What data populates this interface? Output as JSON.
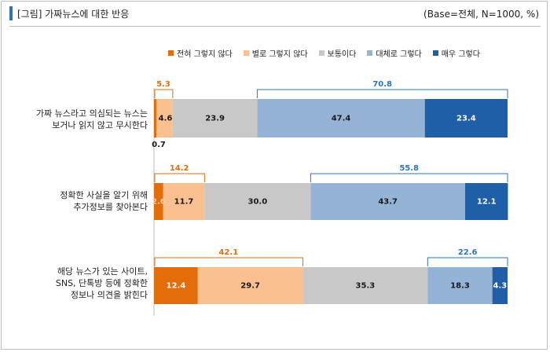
{
  "header": {
    "title": "[그림] 가짜뉴스에 대한 반응",
    "base": "(Base=전체, N=1000, %)",
    "accent_color": "#2e75b6"
  },
  "chart_data": {
    "type": "bar",
    "orientation": "horizontal",
    "stacked": true,
    "percent": true,
    "legend_position": "top",
    "series": [
      {
        "name": "전혀 그렇지 않다",
        "color": "#e46c0a",
        "values": [
          0.7,
          2.6,
          12.4
        ]
      },
      {
        "name": "별로 그렇지 않다",
        "color": "#fac090",
        "values": [
          4.6,
          11.7,
          29.7
        ]
      },
      {
        "name": "보통이다",
        "color": "#c8c8c8",
        "values": [
          23.9,
          30.0,
          35.3
        ]
      },
      {
        "name": "대체로 그렇다",
        "color": "#95b3d7",
        "values": [
          47.4,
          43.7,
          18.3
        ]
      },
      {
        "name": "매우 그렇다",
        "color": "#1f5fa8",
        "values": [
          23.4,
          12.1,
          4.3
        ]
      }
    ],
    "categories": [
      [
        "가짜 뉴스라고 의심되는 뉴스는",
        "보거나 읽지 않고 무시한다"
      ],
      [
        "정확한 사실을 알기 위해",
        "추가정보를 찾아본다"
      ],
      [
        "해당 뉴스가 있는 사이트,",
        "SNS, 단톡방 등에 정확한",
        "정보나 의견을 밝힌다"
      ]
    ],
    "data_labels": [
      [
        "0.7",
        "4.6",
        "23.9",
        "47.4",
        "23.4"
      ],
      [
        "2.6",
        "11.7",
        "30.0",
        "43.7",
        "12.1"
      ],
      [
        "12.4",
        "29.7",
        "35.3",
        "18.3",
        "4.3"
      ]
    ],
    "negative_sums": [
      "5.3",
      "14.2",
      "42.1"
    ],
    "positive_sums": [
      "70.8",
      "55.8",
      "22.6"
    ],
    "sum_colors": {
      "negative": "#e46c0a",
      "positive": "#2e75b6"
    }
  }
}
